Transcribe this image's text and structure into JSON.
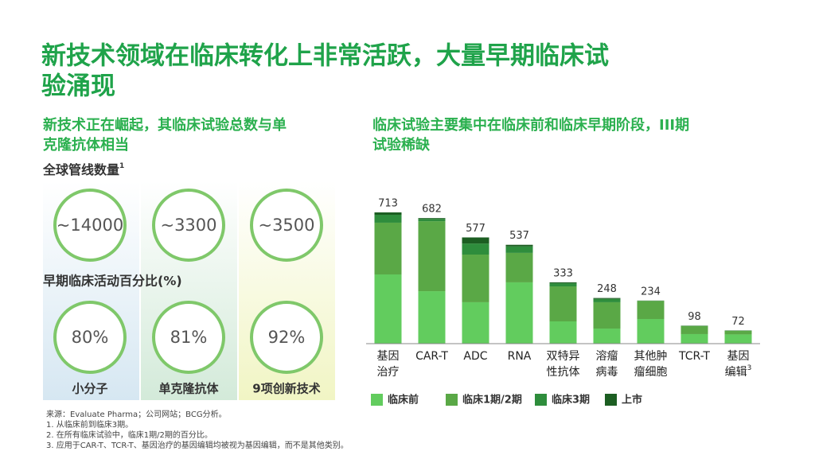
{
  "title_lines": [
    "新技术领域在临床转化上非常活跃，大量早期临床试",
    "验涌现"
  ],
  "left": {
    "subtitle_lines": [
      "新技术正在崛起，其临床试验总数与单",
      "克隆抗体相当"
    ],
    "pipeline_heading": "全球管线数量",
    "pipeline_heading_note": "1",
    "pipeline_counts": [
      "~14000",
      "~3300",
      "~3500"
    ],
    "early_heading": "早期临床活动百分比(%)",
    "early_percents": [
      "80%",
      "81%",
      "92%"
    ],
    "groups": [
      "小分子",
      "单克隆抗体",
      "9项创新技术"
    ]
  },
  "footnotes": [
    "来源：Evaluate Pharma；公司网站；BCG分析。",
    "1. 从临床前到临床3期。",
    "2. 在所有临床试验中，临床1期/2期的百分比。",
    "3. 应用于CAR-T、TCR-T、基因治疗的基因编辑均被视为基因编辑，而不是其他类别。"
  ],
  "chart_data": {
    "type": "stacked_bar",
    "subtitle_lines": [
      "临床试验主要集中在临床前和临床早期阶段，III期",
      "试验稀缺"
    ],
    "categories": [
      "基因治疗",
      "CAR-T",
      "ADC",
      "RNA",
      "双特异性抗体",
      "溶瘤病毒",
      "其他肿瘤细胞",
      "TCR-T",
      "基因编辑"
    ],
    "category_superscripts": [
      null,
      null,
      null,
      null,
      null,
      null,
      null,
      null,
      "3"
    ],
    "series": [
      {
        "name": "临床前",
        "color": "#62cc5e",
        "values": [
          376,
          285,
          225,
          333,
          121,
          82,
          134,
          52,
          50
        ]
      },
      {
        "name": "临床1期/2期",
        "color": "#5aa846",
        "values": [
          281,
          380,
          259,
          160,
          190,
          143,
          98,
          44,
          20
        ]
      },
      {
        "name": "临床3期",
        "color": "#2e8d3c",
        "values": [
          43,
          12,
          60,
          35,
          17,
          18,
          1,
          1,
          1
        ]
      },
      {
        "name": "上市",
        "color": "#1c5e22",
        "values": [
          13,
          5,
          33,
          9,
          5,
          5,
          1,
          1,
          1
        ]
      }
    ],
    "totals": [
      713,
      682,
      577,
      537,
      333,
      248,
      234,
      98,
      72
    ]
  }
}
